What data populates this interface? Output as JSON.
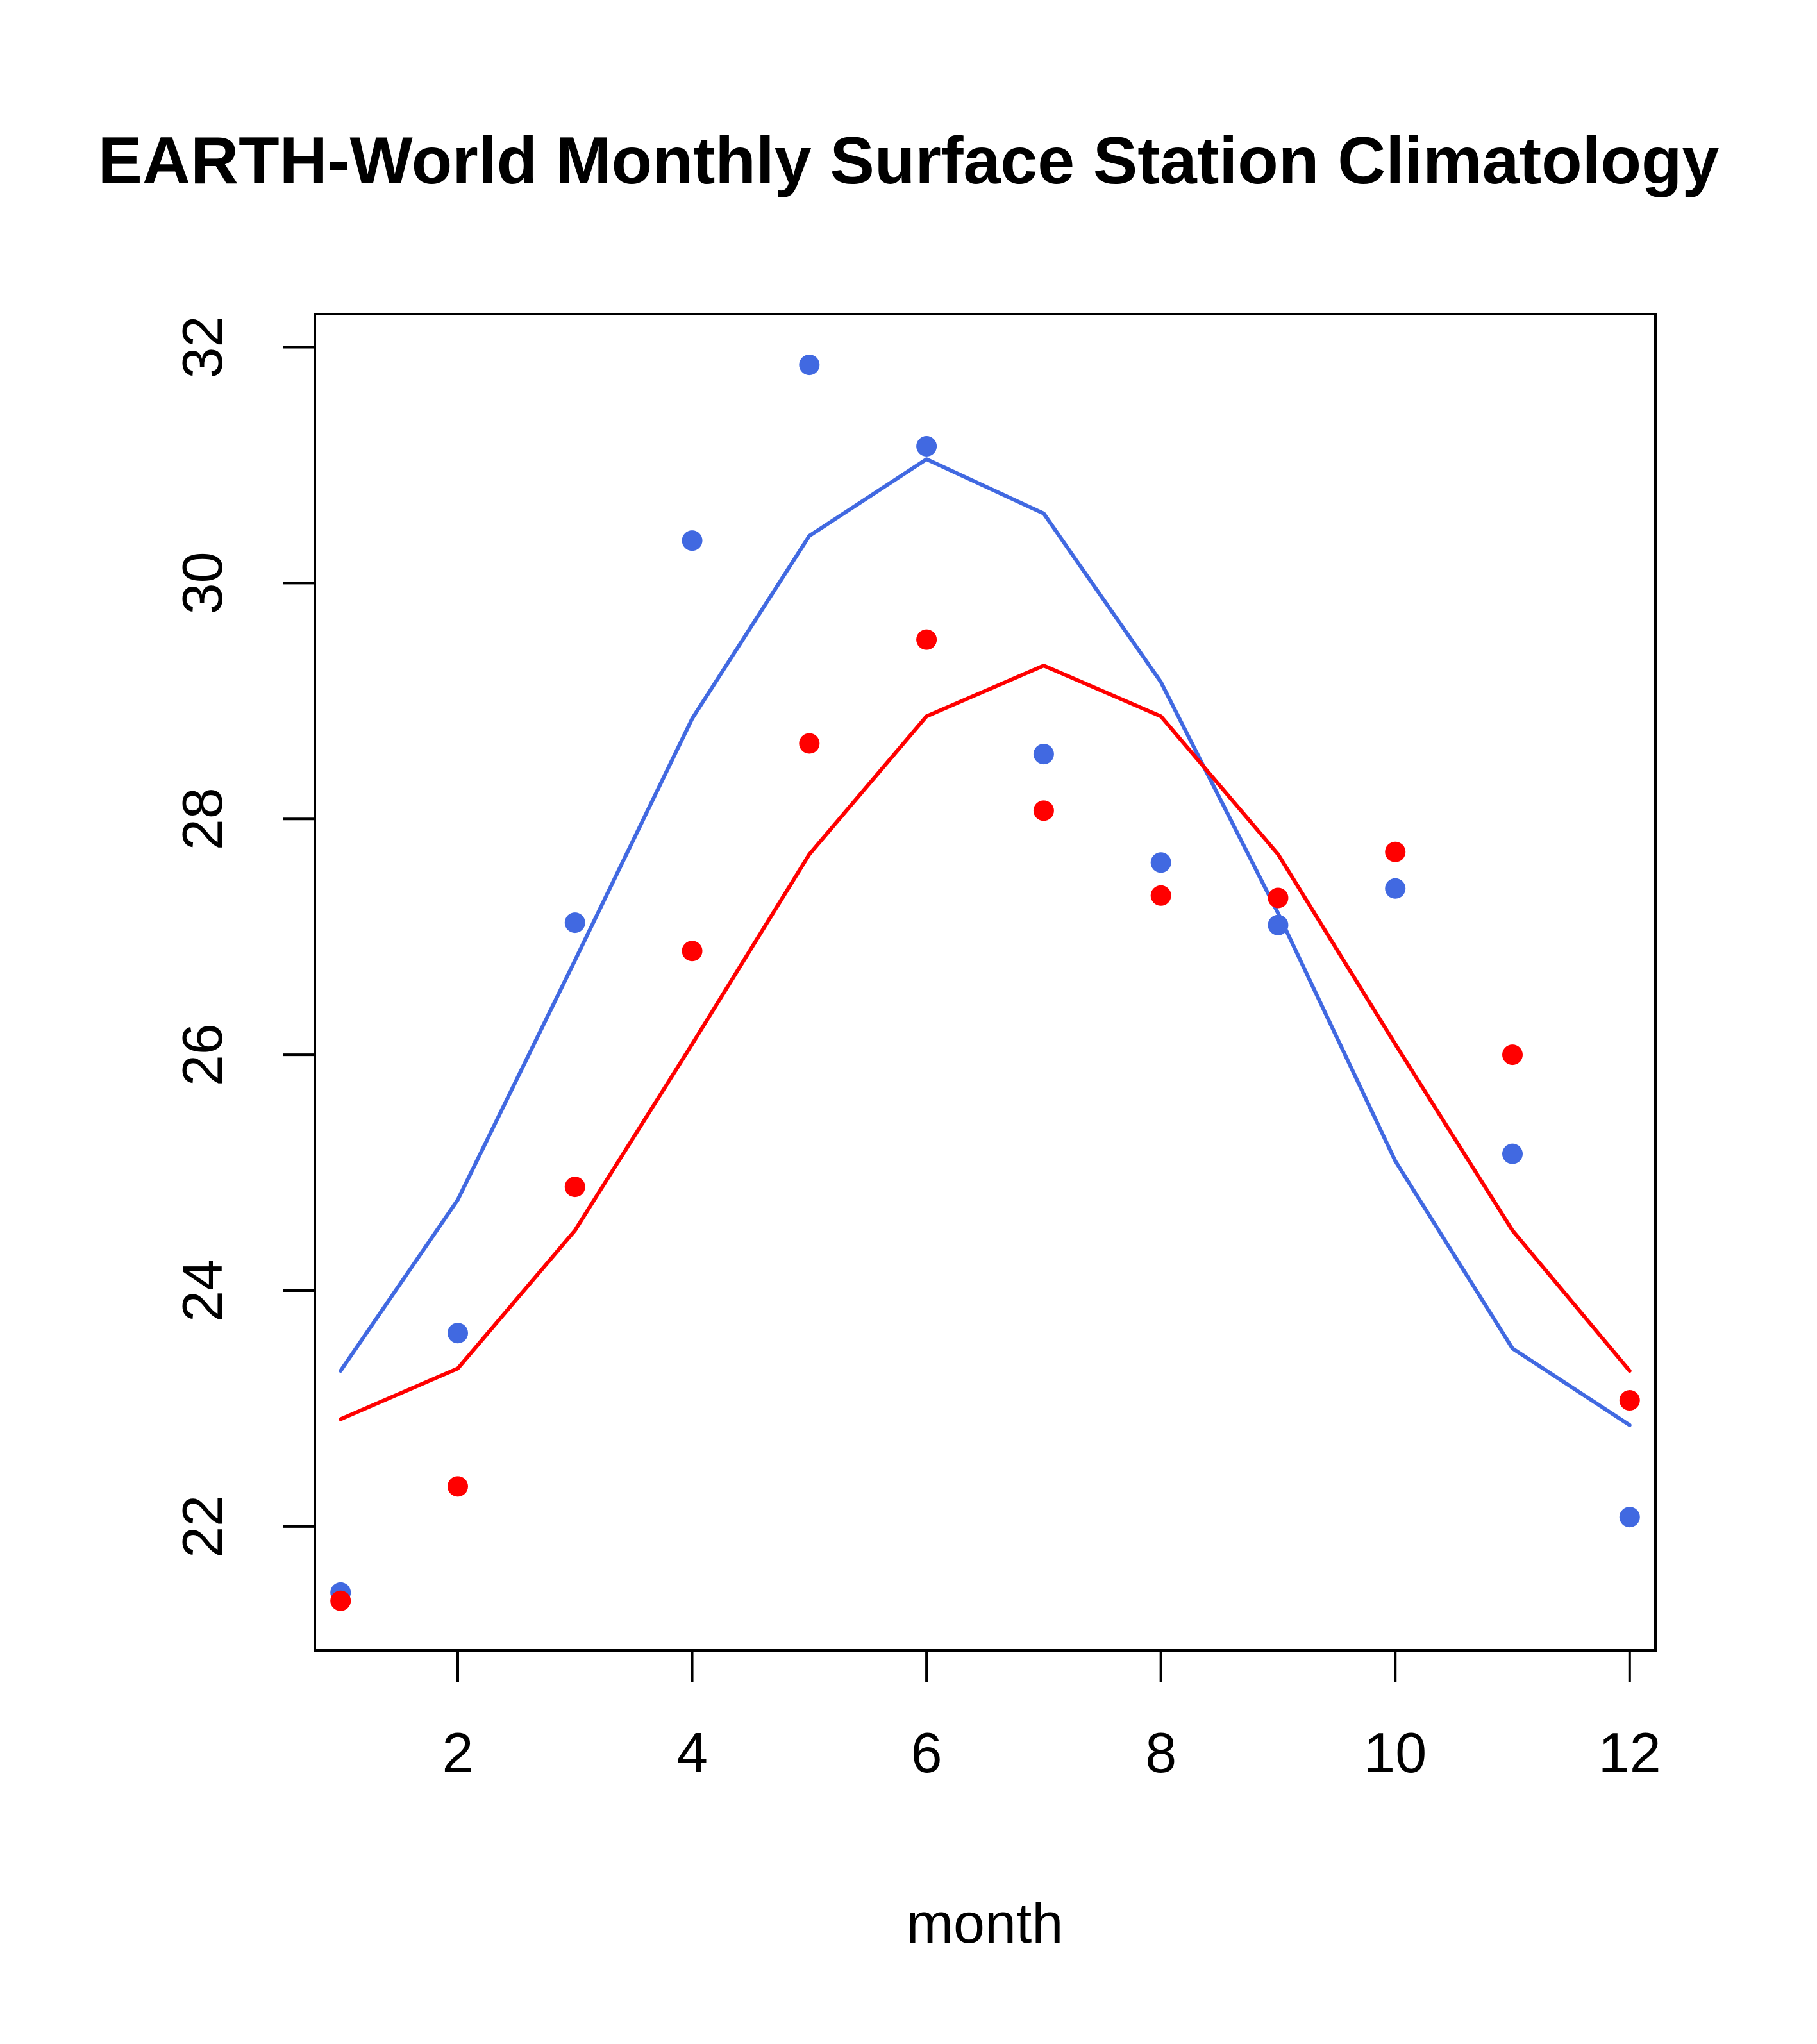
{
  "chart_data": {
    "type": "scatter",
    "title": "EARTH-World Monthly Surface Station Climatology",
    "xlabel": "month",
    "ylabel": "",
    "xlim": [
      0.78,
      12.22
    ],
    "ylim": [
      20.95,
      32.28
    ],
    "xticks": [
      2,
      4,
      6,
      8,
      10,
      12
    ],
    "yticks": [
      22,
      24,
      26,
      28,
      30,
      32
    ],
    "grid": false,
    "legend": "none",
    "x": [
      1,
      2,
      3,
      4,
      5,
      6,
      7,
      8,
      9,
      10,
      11,
      12
    ],
    "series": [
      {
        "name": "blue points",
        "kind": "points",
        "color": "#4169E1",
        "values": [
          21.44,
          23.64,
          27.12,
          30.36,
          31.85,
          31.16,
          28.55,
          27.63,
          27.1,
          27.41,
          25.16,
          22.08
        ]
      },
      {
        "name": "red points",
        "kind": "points",
        "color": "#FF0000",
        "values": [
          21.37,
          22.34,
          24.88,
          26.88,
          28.64,
          29.52,
          28.07,
          27.35,
          27.33,
          27.72,
          26.0,
          23.07
        ]
      },
      {
        "name": "blue line",
        "kind": "line",
        "color": "#4169E1",
        "values": [
          23.32,
          24.77,
          26.8,
          28.85,
          30.4,
          31.05,
          30.59,
          29.16,
          27.2,
          25.1,
          23.51,
          22.86
        ]
      },
      {
        "name": "red line",
        "kind": "line",
        "color": "#FF0000",
        "values": [
          22.91,
          23.34,
          24.51,
          26.09,
          27.7,
          28.87,
          29.3,
          28.87,
          27.7,
          26.09,
          24.51,
          23.32
        ]
      }
    ]
  }
}
